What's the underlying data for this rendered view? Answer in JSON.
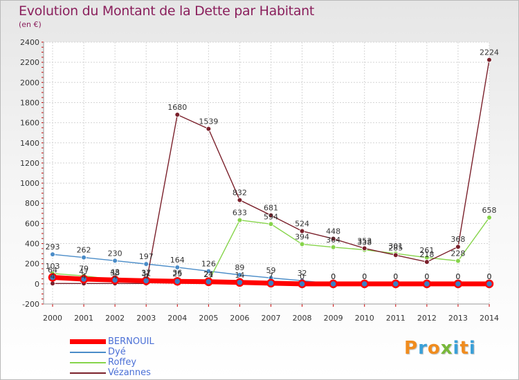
{
  "title": "Evolution du Montant de la Dette par Habitant",
  "subtitle": "(en €)",
  "logo": {
    "text": "Proxiti",
    "colors": [
      "#f08c1e",
      "#3aa0d8",
      "#f08c1e",
      "#78b83a",
      "#3aa0d8",
      "#f08c1e",
      "#3aa0d8"
    ]
  },
  "chart_data": {
    "type": "line",
    "x": [
      "2000",
      "2001",
      "2002",
      "2003",
      "2004",
      "2005",
      "2006",
      "2007",
      "2008",
      "2009",
      "2010",
      "2011",
      "2012",
      "2013",
      "2014"
    ],
    "ylim": [
      -200,
      2400
    ],
    "yticks": [
      -200,
      0,
      200,
      400,
      600,
      800,
      1000,
      1200,
      1400,
      1600,
      1800,
      2000,
      2200,
      2400
    ],
    "grid": true,
    "legend_position": "bottom-left",
    "series": [
      {
        "name": "BERNOUIL",
        "color": "#ff0000",
        "values": [
          64,
          47,
          38,
          31,
          25,
          21,
          14,
          7,
          0,
          0,
          0,
          0,
          0,
          0,
          0
        ],
        "labels": [
          "64",
          "47",
          "38",
          "31",
          "25",
          "21",
          "14",
          "7",
          "0",
          "0",
          "0",
          "0",
          "0",
          "0",
          "0"
        ]
      },
      {
        "name": "Dyé",
        "color": "#4a8cc8",
        "values": [
          293,
          262,
          230,
          197,
          164,
          126,
          89,
          59,
          32,
          0,
          0,
          0,
          0,
          0,
          0
        ],
        "labels": [
          "293",
          "262",
          "230",
          "197",
          "164",
          "126",
          "89",
          "59",
          "32",
          "0",
          "0",
          "0",
          "0",
          "0",
          "0"
        ]
      },
      {
        "name": "Roffey",
        "color": "#86d44a",
        "values": [
          103,
          79,
          43,
          37,
          36,
          24,
          633,
          594,
          394,
          364,
          338,
          301,
          261,
          228,
          658
        ],
        "labels": [
          "103",
          "79",
          "43",
          "37",
          "36",
          "24",
          "633",
          "594",
          "394",
          "364",
          "338",
          "301",
          "261",
          "228",
          "658"
        ]
      },
      {
        "name": "Vézannes",
        "color": "#7a1f2a",
        "values": [
          4,
          4,
          4,
          4,
          1680,
          1539,
          832,
          681,
          524,
          448,
          353,
          285,
          218,
          368,
          2224
        ],
        "labels": [
          "4",
          "4",
          "4",
          "4",
          "1680",
          "1539",
          "832",
          "681",
          "524",
          "448",
          "353",
          "285",
          "218",
          "368",
          "2224"
        ]
      }
    ]
  }
}
